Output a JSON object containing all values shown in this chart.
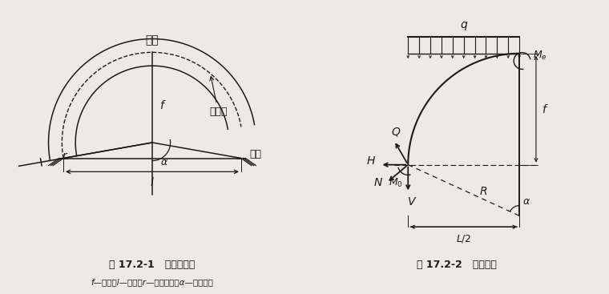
{
  "fig_width": 7.6,
  "fig_height": 3.67,
  "dpi": 100,
  "bg_color": "#ede9e3",
  "line_color": "#1a1a1a",
  "left_title": "拱顶",
  "left_label_axis": "拱轴线",
  "left_label_foot": "拱脚",
  "left_caption": "图 17.2-1   圆弧无铰拱",
  "left_footnote": "f—矢高；l—跨度；r—圆弧半径；α—半弧心角",
  "right_caption": "图 17.2-2   拱身内力"
}
